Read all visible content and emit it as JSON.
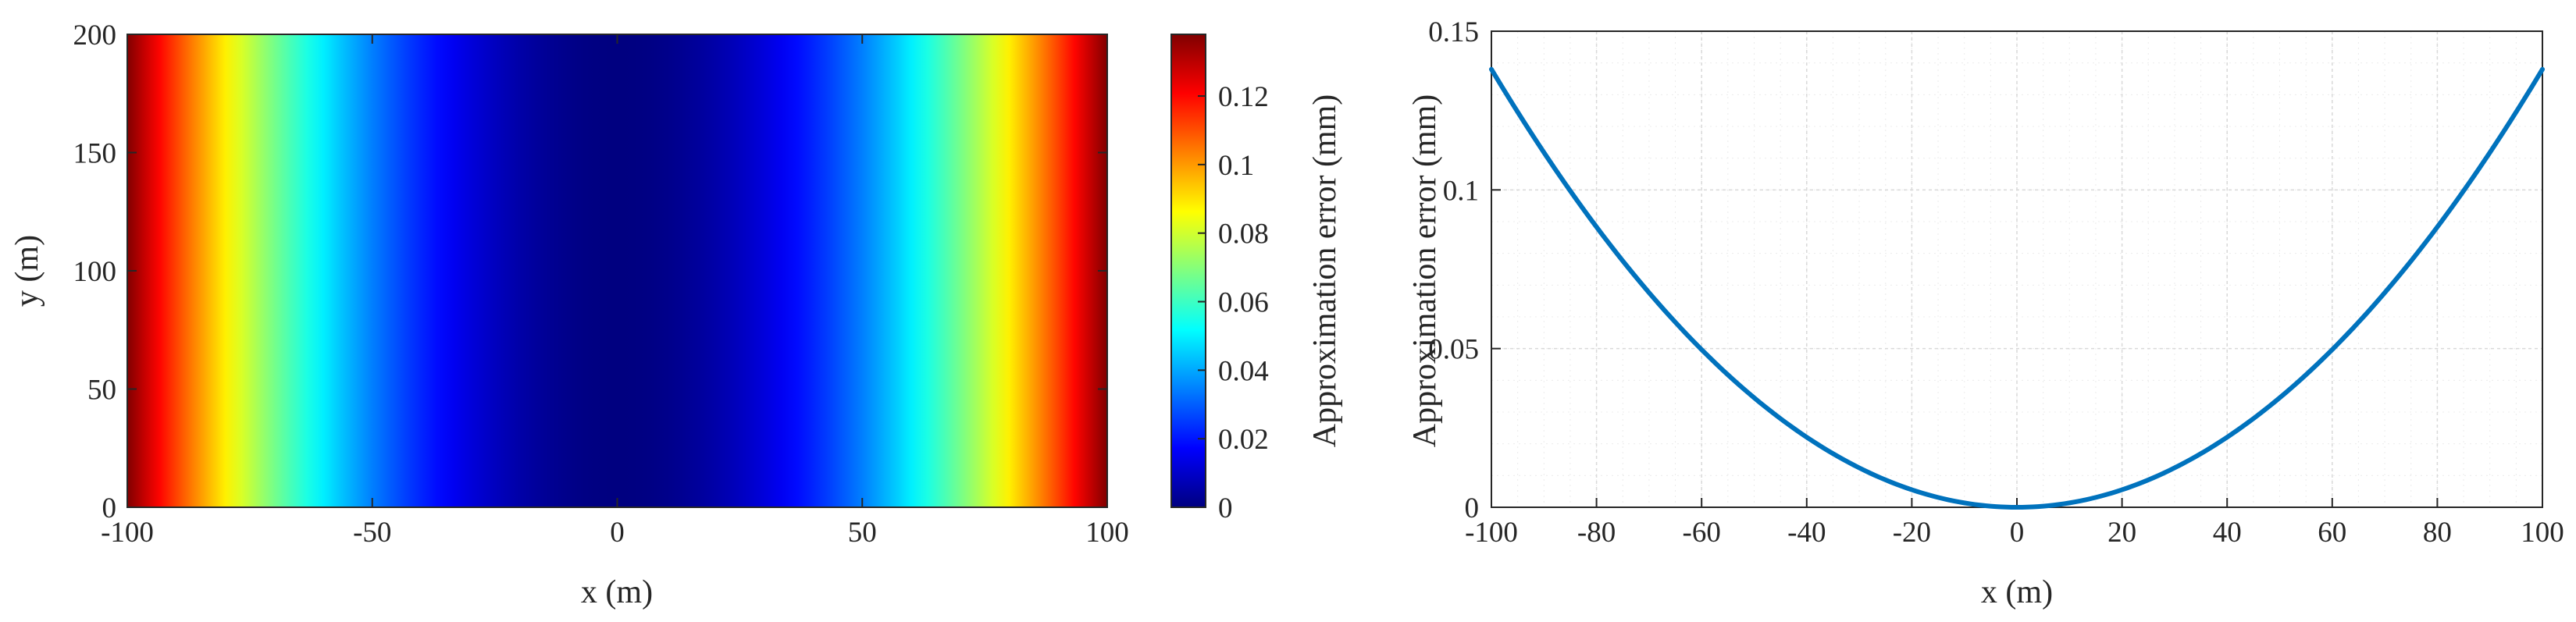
{
  "chart_data": [
    {
      "type": "heatmap",
      "description_panel": "left",
      "xlabel": "x (m)",
      "ylabel": "y (m)",
      "xlim": [
        -100,
        100
      ],
      "ylim": [
        0,
        200
      ],
      "xticks": [
        -100,
        -50,
        0,
        50,
        100
      ],
      "yticks": [
        0,
        50,
        100,
        150,
        200
      ],
      "colormap": "jet",
      "value_formula": "error(x) = 1.38e-5 * x^2 (mm), constant along y",
      "x_samples": [
        -100,
        -80,
        -60,
        -40,
        -20,
        0,
        20,
        40,
        60,
        80,
        100
      ],
      "values": [
        0.138,
        0.088,
        0.05,
        0.022,
        0.0055,
        0,
        0.0055,
        0.022,
        0.05,
        0.088,
        0.138
      ],
      "colorbar": {
        "label": "Approximation error (mm)",
        "range": [
          0,
          0.138
        ],
        "ticks": [
          0,
          0.02,
          0.04,
          0.06,
          0.08,
          0.1,
          0.12
        ]
      }
    },
    {
      "type": "line",
      "xlabel": "x (m)",
      "ylabel": "Approximation error (mm)",
      "xlim": [
        -100,
        100
      ],
      "ylim": [
        0,
        0.15
      ],
      "xticks": [
        -100,
        -80,
        -60,
        -40,
        -20,
        0,
        20,
        40,
        60,
        80,
        100
      ],
      "yticks": [
        0,
        0.05,
        0.1,
        0.15
      ],
      "grid": true,
      "series": [
        {
          "color": "#0072bd",
          "x": [
            -100,
            -90,
            -80,
            -70,
            -60,
            -50,
            -40,
            -30,
            -20,
            -10,
            0,
            10,
            20,
            30,
            40,
            50,
            60,
            70,
            80,
            90,
            100
          ],
          "y": [
            0.138,
            0.112,
            0.088,
            0.068,
            0.05,
            0.0345,
            0.022,
            0.0124,
            0.0055,
            0.0014,
            0,
            0.0014,
            0.0055,
            0.0124,
            0.022,
            0.0345,
            0.05,
            0.068,
            0.088,
            0.112,
            0.138
          ]
        }
      ]
    }
  ]
}
